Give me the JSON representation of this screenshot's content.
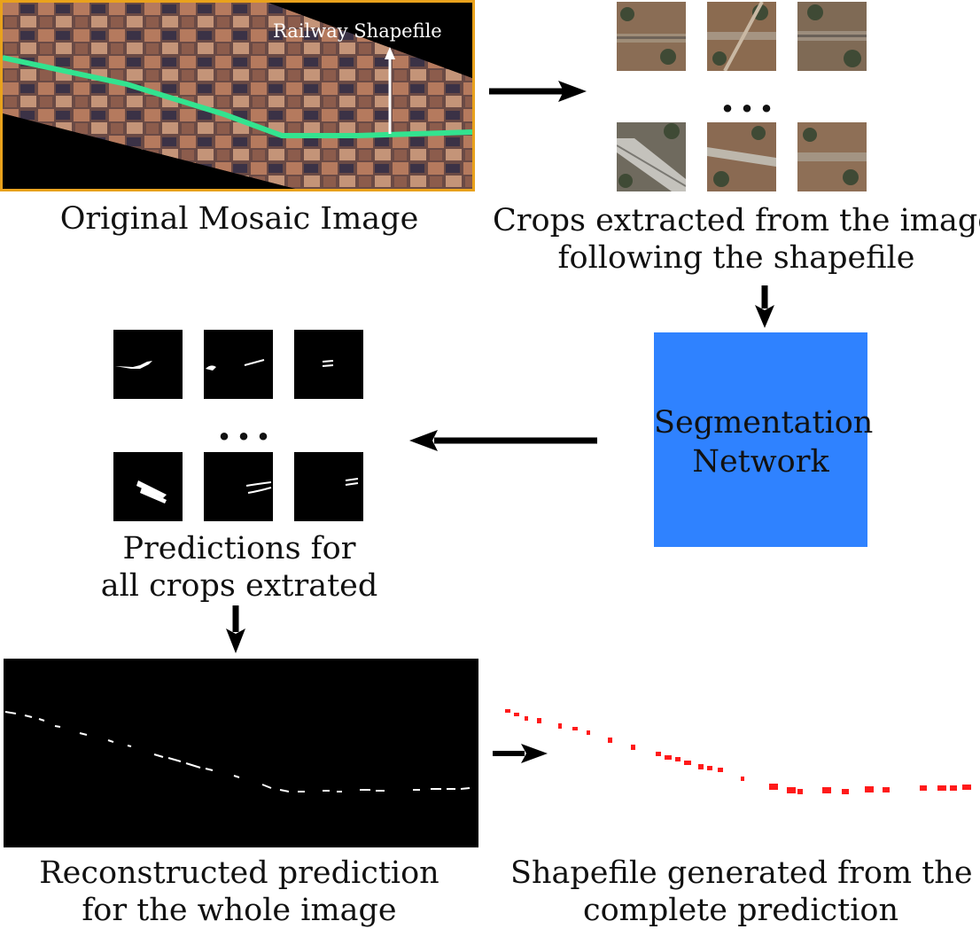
{
  "mosaic": {
    "label": "Railway Shapefile"
  },
  "captions": {
    "original": "Original Mosaic Image",
    "crops_line1": "Crops extracted from the image,",
    "crops_line2": "following the shapefile",
    "predictions_line1": "Predictions for",
    "predictions_line2": "all crops extrated",
    "reconstructed_line1": "Reconstructed prediction",
    "reconstructed_line2": "for the whole image",
    "shapefile_line1": "Shapefile generated from the",
    "shapefile_line2": "complete prediction"
  },
  "network": {
    "line1": "Segmentation",
    "line2": "Network"
  },
  "ellipsis": "...",
  "colors": {
    "mosaic_border": "#e9a21c",
    "railway_line": "#33e38f",
    "network_box": "#2f82ff",
    "shapefile_marks": "#ff1a1a",
    "arrows": "#000000"
  }
}
